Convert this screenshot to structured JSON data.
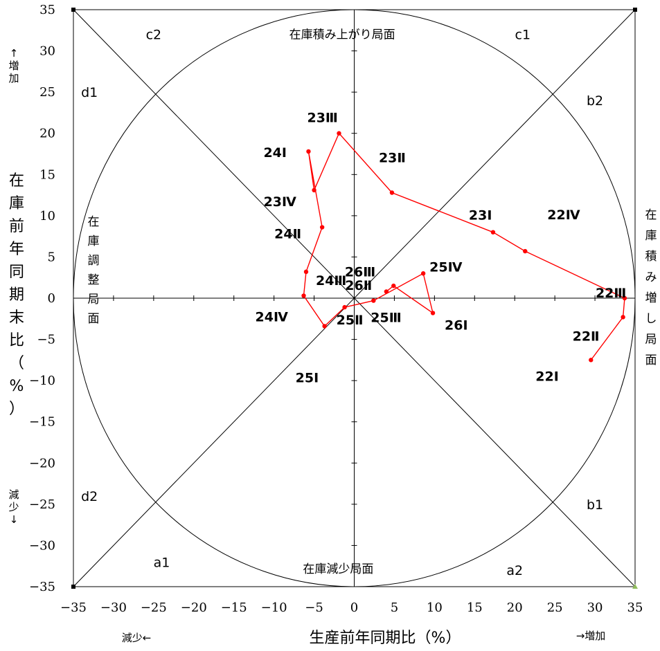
{
  "chart_data": {
    "type": "scatter",
    "title": "",
    "xlabel": "生産前年同期比（%）",
    "ylabel": "在庫前年同期末比（%）",
    "xlim": [
      -35,
      35
    ],
    "ylim": [
      -35,
      35
    ],
    "x_ticks": [
      -35,
      -30,
      -25,
      -20,
      -15,
      -10,
      -5,
      0,
      5,
      10,
      15,
      20,
      25,
      30,
      35
    ],
    "y_ticks": [
      -35,
      -30,
      -25,
      -20,
      -15,
      -10,
      -5,
      0,
      5,
      10,
      15,
      20,
      25,
      30,
      35
    ],
    "series": [
      {
        "color": "#ff0000",
        "points": [
          {
            "label": "22Ⅰ",
            "x": 29.5,
            "y": -7.5
          },
          {
            "label": "22Ⅱ",
            "x": 33.5,
            "y": -2.3
          },
          {
            "label": "22Ⅲ",
            "x": 33.7,
            "y": 0.0
          },
          {
            "label": "22Ⅳ",
            "x": 21.3,
            "y": 5.7
          },
          {
            "label": "23Ⅰ",
            "x": 17.3,
            "y": 8.0
          },
          {
            "label": "23Ⅱ",
            "x": 4.7,
            "y": 12.8
          },
          {
            "label": "23Ⅲ",
            "x": -1.9,
            "y": 20.0
          },
          {
            "label": "23Ⅳ",
            "x": -5.0,
            "y": 13.1
          },
          {
            "label": "24Ⅰ",
            "x": -5.7,
            "y": 17.8
          },
          {
            "label": "24Ⅱ",
            "x": -4.0,
            "y": 8.6
          },
          {
            "label": "24Ⅲ",
            "x": -6.0,
            "y": 3.2
          },
          {
            "label": "24Ⅳ",
            "x": -6.3,
            "y": 0.3
          },
          {
            "label": "25Ⅰ",
            "x": -3.7,
            "y": -3.4
          },
          {
            "label": "25Ⅱ",
            "x": -1.2,
            "y": -1.1
          },
          {
            "label": "25Ⅲ",
            "x": 2.4,
            "y": -0.3
          },
          {
            "label": "25Ⅳ",
            "x": 8.6,
            "y": 3.0
          },
          {
            "label": "26Ⅰ",
            "x": 9.8,
            "y": -1.8
          },
          {
            "label": "26Ⅱ",
            "x": 4.9,
            "y": 1.5
          },
          {
            "label": "26Ⅲ",
            "x": 4.0,
            "y": 0.8
          }
        ]
      }
    ],
    "point_labels_text": [
      "22Ⅰ",
      "22Ⅱ",
      "22Ⅲ",
      "22Ⅳ",
      "23Ⅰ",
      "23Ⅱ",
      "23Ⅲ",
      "23Ⅳ",
      "24Ⅰ",
      "24Ⅱ",
      "24Ⅲ",
      "24Ⅳ",
      "25Ⅰ",
      "25Ⅱ",
      "25Ⅲ",
      "25Ⅳ",
      "26Ⅰ",
      "26Ⅱ",
      "26Ⅲ"
    ],
    "region_labels": {
      "a1": "a1",
      "a2": "a2",
      "b1": "b1",
      "b2": "b2",
      "c1": "c1",
      "c2": "c2",
      "d1": "d1",
      "d2": "d2"
    },
    "phase_labels": {
      "top": "在庫積み上がり局面",
      "bottom": "在庫減少局面",
      "left": "在庫調整局面",
      "right": "在庫積み増し局面"
    },
    "direction_labels": {
      "y_increase": "↑増加",
      "y_decrease": "減少↓",
      "x_decrease": "減少←",
      "x_increase": "→増加"
    },
    "grid": false,
    "legend": "none"
  }
}
